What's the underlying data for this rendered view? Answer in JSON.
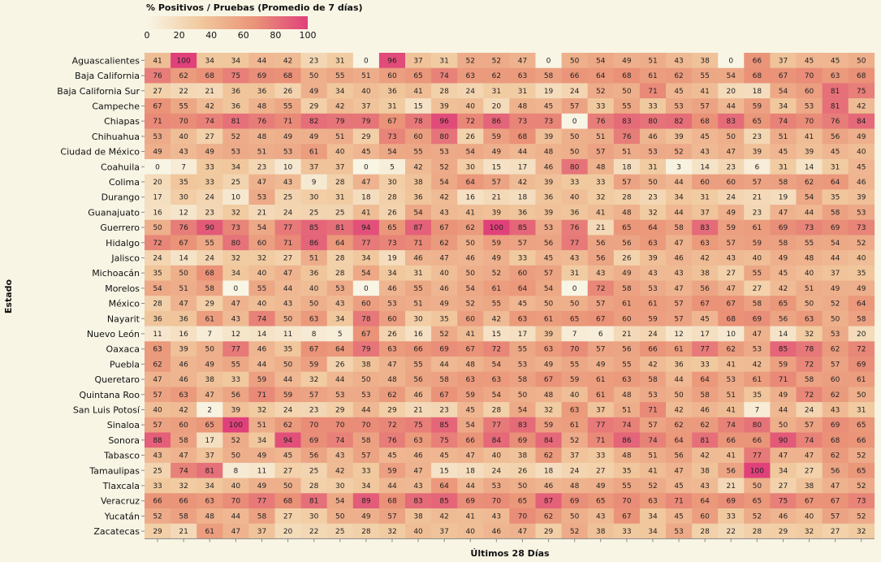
{
  "chart_data": {
    "type": "heatmap",
    "title": "% Positivos / Pruebas (Promedio de 7 días)",
    "xlabel": "Últimos 28 Días",
    "ylabel": "Estado",
    "color_scale": {
      "domain": [
        0,
        100
      ],
      "ticks": [
        "0",
        "20",
        "40",
        "60",
        "80",
        "100"
      ],
      "colors": [
        "#f8f5e5",
        "#f1c99e",
        "#ea9478",
        "#e0417a"
      ]
    },
    "rows": [
      "Aguascalientes",
      "Baja California",
      "Baja California Sur",
      "Campeche",
      "Chiapas",
      "Chihuahua",
      "Ciudad de México",
      "Coahuila",
      "Colima",
      "Durango",
      "Guanajuato",
      "Guerrero",
      "Hidalgo",
      "Jalisco",
      "Michoacán",
      "Morelos",
      "México",
      "Nayarit",
      "Nuevo León",
      "Oaxaca",
      "Puebla",
      "Queretaro",
      "Quintana Roo",
      "San Luis Potosí",
      "Sinaloa",
      "Sonora",
      "Tabasco",
      "Tamaulipas",
      "Tlaxcala",
      "Veracruz",
      "Yucatán",
      "Zacatecas"
    ],
    "values": [
      [
        41,
        100,
        34,
        34,
        44,
        42,
        23,
        31,
        0,
        96,
        37,
        31,
        52,
        52,
        47,
        0,
        50,
        54,
        49,
        51,
        43,
        38,
        0,
        66,
        37,
        45,
        45,
        50
      ],
      [
        76,
        62,
        68,
        75,
        69,
        68,
        50,
        55,
        51,
        60,
        65,
        74,
        63,
        62,
        63,
        58,
        66,
        64,
        68,
        61,
        62,
        55,
        54,
        68,
        67,
        70,
        63,
        68
      ],
      [
        27,
        22,
        21,
        36,
        36,
        26,
        49,
        34,
        40,
        36,
        41,
        28,
        24,
        31,
        31,
        19,
        24,
        52,
        50,
        71,
        45,
        41,
        20,
        18,
        54,
        60,
        81,
        75
      ],
      [
        67,
        55,
        42,
        36,
        48,
        55,
        29,
        42,
        37,
        31,
        15,
        39,
        40,
        20,
        48,
        45,
        57,
        33,
        55,
        33,
        53,
        57,
        44,
        59,
        34,
        53,
        81,
        42
      ],
      [
        71,
        70,
        74,
        81,
        76,
        71,
        82,
        79,
        79,
        67,
        78,
        96,
        72,
        86,
        73,
        73,
        0,
        76,
        83,
        80,
        82,
        68,
        83,
        65,
        74,
        70,
        76,
        84
      ],
      [
        53,
        40,
        27,
        52,
        48,
        49,
        49,
        51,
        29,
        73,
        60,
        80,
        26,
        59,
        68,
        39,
        50,
        51,
        76,
        46,
        39,
        45,
        50,
        23,
        51,
        41,
        56,
        49
      ],
      [
        49,
        43,
        49,
        53,
        51,
        53,
        61,
        40,
        45,
        54,
        55,
        53,
        54,
        49,
        44,
        48,
        50,
        57,
        51,
        53,
        52,
        43,
        47,
        39,
        45,
        39,
        45,
        40
      ],
      [
        0,
        7,
        33,
        34,
        23,
        10,
        37,
        37,
        0,
        5,
        42,
        52,
        30,
        15,
        17,
        46,
        80,
        48,
        18,
        31,
        3,
        14,
        23,
        6,
        31,
        14,
        31,
        45
      ],
      [
        20,
        35,
        33,
        25,
        47,
        43,
        9,
        28,
        47,
        30,
        38,
        54,
        64,
        57,
        42,
        39,
        33,
        33,
        57,
        50,
        44,
        60,
        60,
        57,
        58,
        62,
        64,
        46
      ],
      [
        17,
        30,
        24,
        10,
        53,
        25,
        30,
        31,
        18,
        28,
        36,
        42,
        16,
        21,
        18,
        36,
        40,
        32,
        28,
        23,
        34,
        31,
        24,
        21,
        19,
        54,
        35,
        39
      ],
      [
        16,
        12,
        23,
        32,
        21,
        24,
        25,
        25,
        41,
        26,
        54,
        43,
        41,
        39,
        36,
        39,
        36,
        41,
        48,
        32,
        44,
        37,
        49,
        23,
        47,
        44,
        58,
        53
      ],
      [
        50,
        76,
        90,
        73,
        54,
        77,
        85,
        81,
        94,
        65,
        87,
        67,
        62,
        100,
        85,
        53,
        76,
        21,
        65,
        64,
        58,
        83,
        59,
        61,
        69,
        73,
        69,
        73
      ],
      [
        72,
        67,
        55,
        80,
        60,
        71,
        86,
        64,
        77,
        73,
        71,
        62,
        50,
        59,
        57,
        56,
        77,
        56,
        56,
        63,
        47,
        63,
        57,
        59,
        58,
        55,
        54,
        52
      ],
      [
        24,
        14,
        24,
        32,
        32,
        27,
        51,
        28,
        34,
        19,
        46,
        47,
        46,
        49,
        33,
        45,
        43,
        56,
        26,
        39,
        46,
        42,
        43,
        40,
        49,
        48,
        44,
        40
      ],
      [
        35,
        50,
        68,
        34,
        40,
        47,
        36,
        28,
        54,
        34,
        31,
        40,
        50,
        52,
        60,
        57,
        31,
        43,
        49,
        43,
        43,
        38,
        27,
        55,
        45,
        40,
        37,
        35
      ],
      [
        54,
        51,
        58,
        0,
        55,
        44,
        40,
        53,
        0,
        46,
        55,
        46,
        54,
        61,
        64,
        54,
        0,
        72,
        58,
        53,
        47,
        56,
        47,
        27,
        42,
        51,
        49,
        49
      ],
      [
        28,
        47,
        29,
        47,
        40,
        43,
        50,
        43,
        60,
        53,
        51,
        49,
        52,
        55,
        45,
        50,
        50,
        57,
        61,
        61,
        57,
        67,
        67,
        58,
        65,
        50,
        52,
        64
      ],
      [
        36,
        36,
        61,
        43,
        74,
        50,
        63,
        34,
        78,
        60,
        30,
        35,
        60,
        42,
        63,
        61,
        65,
        67,
        60,
        59,
        57,
        45,
        68,
        69,
        56,
        63,
        50,
        58
      ],
      [
        11,
        16,
        7,
        12,
        14,
        11,
        8,
        5,
        67,
        26,
        16,
        52,
        41,
        15,
        17,
        39,
        7,
        6,
        21,
        24,
        12,
        17,
        10,
        47,
        14,
        32,
        53,
        20
      ],
      [
        63,
        39,
        50,
        77,
        46,
        35,
        67,
        64,
        79,
        63,
        66,
        69,
        67,
        72,
        55,
        63,
        70,
        57,
        56,
        66,
        61,
        77,
        62,
        53,
        85,
        78,
        62,
        72
      ],
      [
        62,
        46,
        49,
        55,
        44,
        50,
        59,
        26,
        38,
        47,
        55,
        44,
        48,
        54,
        53,
        49,
        55,
        49,
        55,
        42,
        36,
        33,
        41,
        42,
        59,
        72,
        57,
        69
      ],
      [
        47,
        46,
        38,
        33,
        59,
        44,
        32,
        44,
        50,
        48,
        56,
        58,
        63,
        63,
        58,
        67,
        59,
        61,
        63,
        58,
        44,
        64,
        53,
        61,
        71,
        58,
        60,
        61
      ],
      [
        57,
        63,
        47,
        56,
        71,
        59,
        57,
        53,
        53,
        62,
        46,
        67,
        59,
        54,
        50,
        48,
        40,
        61,
        48,
        53,
        50,
        58,
        51,
        35,
        49,
        72,
        62,
        50
      ],
      [
        40,
        42,
        2,
        39,
        32,
        24,
        23,
        29,
        44,
        29,
        21,
        23,
        45,
        28,
        54,
        32,
        63,
        37,
        51,
        71,
        42,
        46,
        41,
        7,
        44,
        24,
        43,
        31
      ],
      [
        57,
        60,
        65,
        100,
        51,
        62,
        70,
        70,
        70,
        72,
        75,
        85,
        54,
        77,
        83,
        59,
        61,
        77,
        74,
        57,
        62,
        62,
        74,
        80,
        50,
        57,
        69,
        65
      ],
      [
        88,
        58,
        17,
        52,
        34,
        94,
        69,
        74,
        58,
        76,
        63,
        75,
        66,
        84,
        69,
        84,
        52,
        71,
        86,
        74,
        64,
        81,
        66,
        66,
        90,
        74,
        68,
        66
      ],
      [
        43,
        47,
        37,
        50,
        49,
        45,
        56,
        43,
        57,
        45,
        46,
        45,
        47,
        40,
        38,
        62,
        37,
        33,
        48,
        51,
        56,
        42,
        41,
        77,
        47,
        47,
        62,
        52
      ],
      [
        25,
        74,
        81,
        8,
        11,
        27,
        25,
        42,
        33,
        59,
        47,
        15,
        18,
        24,
        26,
        18,
        24,
        27,
        35,
        41,
        47,
        38,
        56,
        100,
        34,
        27,
        56,
        65
      ],
      [
        33,
        32,
        34,
        40,
        49,
        50,
        28,
        30,
        34,
        44,
        43,
        64,
        44,
        53,
        50,
        46,
        48,
        49,
        55,
        52,
        45,
        43,
        21,
        50,
        27,
        38,
        47,
        52
      ],
      [
        66,
        66,
        63,
        70,
        77,
        68,
        81,
        54,
        89,
        68,
        83,
        85,
        69,
        70,
        65,
        87,
        69,
        65,
        70,
        63,
        71,
        64,
        69,
        65,
        75,
        67,
        67,
        73
      ],
      [
        52,
        58,
        48,
        44,
        58,
        27,
        30,
        50,
        49,
        57,
        38,
        42,
        41,
        43,
        70,
        62,
        50,
        43,
        67,
        34,
        45,
        60,
        33,
        52,
        46,
        40,
        57,
        52
      ],
      [
        29,
        21,
        61,
        47,
        37,
        20,
        22,
        25,
        28,
        32,
        40,
        37,
        40,
        46,
        47,
        29,
        52,
        38,
        33,
        34,
        53,
        28,
        22,
        28,
        29,
        32,
        27,
        32
      ]
    ]
  }
}
